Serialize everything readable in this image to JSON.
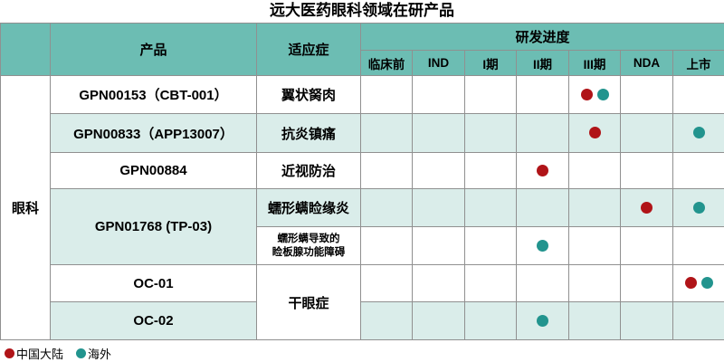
{
  "title": "远大医药眼科领域在研产品",
  "colors": {
    "header_bg": "#6CBDB3",
    "stripe_bg": "#DAEDEA",
    "border": "#909090"
  },
  "chart_data": {
    "type": "table",
    "title": "远大医药眼科领域在研产品",
    "group_label": "眼科",
    "columns": {
      "product": "产品",
      "indication": "适应症",
      "progress": "研发进度"
    },
    "stages": [
      "临床前",
      "IND",
      "I期",
      "II期",
      "III期",
      "NDA",
      "上市"
    ],
    "rows": [
      {
        "product": "GPN00153（CBT-001）",
        "indication": "翼状胬肉",
        "markers": {
          "III期": [
            "cn",
            "overseas"
          ]
        }
      },
      {
        "product": "GPN00833（APP13007）",
        "indication": "抗炎镇痛",
        "markers": {
          "III期": [
            "cn"
          ],
          "上市": [
            "overseas"
          ]
        }
      },
      {
        "product": "GPN00884",
        "indication": "近视防治",
        "markers": {
          "II期": [
            "cn"
          ]
        }
      },
      {
        "product": "GPN01768 (TP-03)",
        "product_rowspan": 2,
        "indication": "蠕形螨睑缘炎",
        "markers": {
          "NDA": [
            "cn"
          ],
          "上市": [
            "overseas"
          ]
        }
      },
      {
        "product": null,
        "indication": "蠕形螨导致的\n睑板腺功能障碍",
        "markers": {
          "II期": [
            "overseas"
          ]
        }
      },
      {
        "product": "OC-01",
        "indication": "干眼症",
        "indication_rowspan": 2,
        "markers": {
          "上市": [
            "cn",
            "overseas"
          ]
        }
      },
      {
        "product": "OC-02",
        "indication": null,
        "markers": {
          "II期": [
            "overseas"
          ]
        }
      }
    ]
  },
  "legend": [
    {
      "key": "cn",
      "label": "中国大陆",
      "color": "#B01418"
    },
    {
      "key": "overseas",
      "label": "海外",
      "color": "#22948E"
    }
  ]
}
